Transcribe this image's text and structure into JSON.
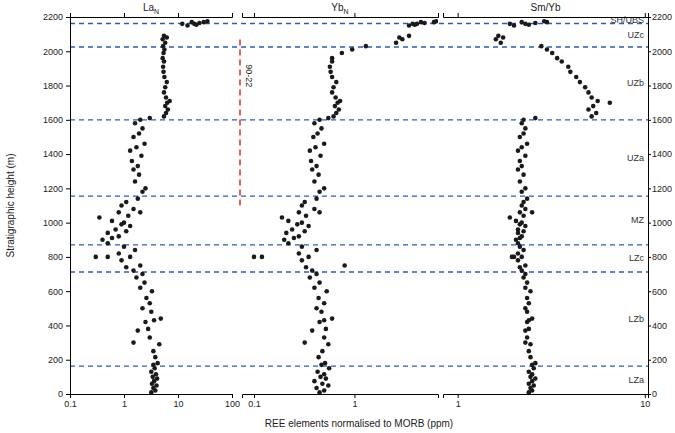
{
  "chart_data": {
    "type": "scatter",
    "log": "x",
    "grid": false,
    "color": "#1a1a1a",
    "xlabel": "REE elements normalised to MORB (ppm)",
    "ylabel": "Stratigraphic height (m)",
    "ylim": [
      0,
      2200
    ],
    "yticks": [
      0,
      200,
      400,
      600,
      800,
      1000,
      1200,
      1400,
      1600,
      1800,
      2000,
      2200
    ],
    "zones": [
      {
        "name": "LZa",
        "from": 0,
        "to": 163
      },
      {
        "name": "LZb",
        "from": 163,
        "to": 712
      },
      {
        "name": "LZc",
        "from": 712,
        "to": 870
      },
      {
        "name": "MZ",
        "from": 870,
        "to": 1155
      },
      {
        "name": "UZa",
        "from": 1155,
        "to": 1600
      },
      {
        "name": "UZb",
        "from": 1600,
        "to": 2025
      },
      {
        "name": "UZc",
        "from": 2025,
        "to": 2162
      },
      {
        "name": "SH/UBS",
        "from": 2162,
        "to": 2200
      }
    ],
    "zone_color": "#2e5cb8",
    "annotation": {
      "text": "90-22",
      "y_range": [
        1100,
        2070
      ],
      "color": "#e03a2f"
    },
    "panels": [
      {
        "title": {
          "text": "La",
          "sub": "N"
        },
        "xlim": [
          0.1,
          100
        ],
        "xticks": [
          0.1,
          1,
          10,
          100
        ],
        "x": [
          3.2,
          3.8,
          3.5,
          4.0,
          3.3,
          3.6,
          4.1,
          3.4,
          3.9,
          3.2,
          3.7,
          3.5,
          4.2,
          3.8,
          3.5,
          4.5,
          3.0,
          1.5,
          2.8,
          1.8,
          2.5,
          4.8,
          3.6,
          3.2,
          2.2,
          3.0,
          2.6,
          3.3,
          2.0,
          2.4,
          1.7,
          2.2,
          1.5,
          1.1,
          2.0,
          0.9,
          1.3,
          0.5,
          0.3,
          0.8,
          1.6,
          1.0,
          0.5,
          0.4,
          0.6,
          0.8,
          0.5,
          1.1,
          0.7,
          1.3,
          0.9,
          1.0,
          0.6,
          0.35,
          1.2,
          0.8,
          2.0,
          1.5,
          0.9,
          1.1,
          1.8,
          2.2,
          2.5,
          1.6,
          1.9,
          1.5,
          1.8,
          1.4,
          2.1,
          1.3,
          1.7,
          2.4,
          1.5,
          1.9,
          2.2,
          1.6,
          2.0,
          3.0,
          5.5,
          6.0,
          6.5,
          5.8,
          6.3,
          7.0,
          6.0,
          5.5,
          5.8,
          6.2,
          5.6,
          5.4,
          5.3,
          5.5,
          5.2,
          5.4,
          5.6,
          5.3,
          5.8,
          5.2,
          6.2,
          5.5,
          15,
          20,
          25,
          30,
          18,
          12,
          35,
          22
        ],
        "y": [
          10,
          20,
          35,
          50,
          60,
          75,
          90,
          100,
          115,
          130,
          150,
          170,
          180,
          215,
          250,
          290,
          330,
          300,
          380,
          370,
          420,
          440,
          430,
          480,
          500,
          530,
          560,
          600,
          620,
          650,
          680,
          700,
          720,
          740,
          750,
          780,
          800,
          800,
          800,
          820,
          840,
          860,
          880,
          900,
          910,
          920,
          940,
          950,
          960,
          980,
          990,
          1000,
          1010,
          1030,
          1040,
          1060,
          1060,
          1080,
          1100,
          1120,
          1140,
          1180,
          1200,
          1240,
          1280,
          1310,
          1330,
          1360,
          1390,
          1420,
          1440,
          1460,
          1500,
          1520,
          1550,
          1580,
          1600,
          1610,
          1620,
          1640,
          1660,
          1680,
          1700,
          1710,
          1730,
          1760,
          1790,
          1820,
          1850,
          1880,
          1910,
          1940,
          1960,
          1990,
          2010,
          2030,
          2050,
          2070,
          2080,
          2090,
          2150,
          2160,
          2165,
          2170,
          2170,
          2160,
          2175,
          2155
        ]
      },
      {
        "title": {
          "text": "Yb",
          "sub": "N"
        },
        "xlim": [
          0.076,
          6.8
        ],
        "xticks": [
          0.1,
          1
        ],
        "x": [
          0.45,
          0.5,
          0.42,
          0.55,
          0.48,
          0.4,
          0.52,
          0.46,
          0.5,
          0.43,
          0.56,
          0.47,
          0.51,
          0.44,
          0.48,
          0.55,
          0.5,
          0.32,
          0.52,
          0.38,
          0.45,
          0.6,
          0.5,
          0.47,
          0.42,
          0.5,
          0.44,
          0.53,
          0.4,
          0.45,
          0.36,
          0.42,
          0.38,
          0.33,
          0.8,
          0.3,
          0.35,
          0.12,
          0.1,
          0.28,
          0.42,
          0.3,
          0.22,
          0.2,
          0.25,
          0.28,
          0.21,
          0.32,
          0.24,
          0.35,
          0.27,
          0.3,
          0.22,
          0.19,
          0.33,
          0.28,
          0.45,
          0.4,
          0.3,
          0.32,
          0.42,
          0.45,
          0.5,
          0.4,
          0.44,
          0.38,
          0.42,
          0.37,
          0.46,
          0.36,
          0.41,
          0.5,
          0.39,
          0.43,
          0.47,
          0.4,
          0.45,
          0.55,
          0.62,
          0.66,
          0.7,
          0.64,
          0.68,
          0.72,
          0.65,
          0.6,
          0.62,
          0.66,
          0.6,
          0.58,
          0.57,
          0.6,
          0.6,
          0.75,
          0.95,
          1.3,
          2.6,
          3.0,
          2.8,
          3.5,
          3.5,
          4.2,
          5.0,
          6.2,
          4.6,
          3.8,
          6.5,
          4.0
        ],
        "y": [
          10,
          20,
          35,
          50,
          60,
          75,
          90,
          100,
          115,
          130,
          150,
          170,
          180,
          215,
          250,
          290,
          330,
          300,
          380,
          370,
          420,
          440,
          430,
          480,
          500,
          530,
          560,
          600,
          620,
          650,
          680,
          700,
          720,
          740,
          750,
          780,
          800,
          800,
          800,
          820,
          840,
          860,
          880,
          900,
          910,
          920,
          940,
          950,
          960,
          980,
          990,
          1000,
          1010,
          1030,
          1040,
          1060,
          1060,
          1080,
          1100,
          1120,
          1140,
          1180,
          1200,
          1240,
          1280,
          1310,
          1330,
          1360,
          1390,
          1420,
          1440,
          1460,
          1500,
          1520,
          1550,
          1580,
          1600,
          1610,
          1620,
          1640,
          1660,
          1680,
          1700,
          1710,
          1730,
          1760,
          1790,
          1820,
          1850,
          1880,
          1910,
          1940,
          1960,
          1990,
          2010,
          2030,
          2050,
          2070,
          2080,
          2090,
          2150,
          2160,
          2165,
          2170,
          2170,
          2160,
          2175,
          2155
        ]
      },
      {
        "title": {
          "text": "Sm/Yb",
          "sub": null
        },
        "xlim": [
          0.835,
          10.4
        ],
        "xticks": [
          1,
          10
        ],
        "x": [
          2.4,
          2.5,
          2.45,
          2.55,
          2.4,
          2.5,
          2.6,
          2.45,
          2.5,
          2.4,
          2.55,
          2.5,
          2.6,
          2.45,
          2.4,
          2.45,
          2.35,
          2.3,
          2.4,
          2.3,
          2.35,
          2.5,
          2.4,
          2.35,
          2.3,
          2.4,
          2.35,
          2.45,
          2.3,
          2.35,
          2.25,
          2.3,
          2.2,
          2.15,
          2.3,
          2.1,
          2.2,
          2.0,
          1.95,
          2.1,
          2.25,
          2.15,
          2.1,
          2.05,
          2.15,
          2.2,
          2.1,
          2.25,
          2.1,
          2.3,
          2.15,
          2.2,
          2.05,
          1.9,
          2.25,
          2.15,
          2.5,
          2.3,
          2.2,
          2.25,
          2.35,
          2.2,
          2.3,
          2.15,
          2.25,
          2.1,
          2.2,
          2.15,
          2.3,
          2.1,
          2.2,
          2.35,
          2.15,
          2.25,
          2.3,
          2.2,
          2.25,
          2.6,
          5.2,
          5.5,
          5.0,
          5.3,
          6.5,
          5.6,
          5.2,
          5.0,
          4.8,
          4.5,
          4.3,
          4.0,
          3.9,
          3.6,
          3.4,
          3.2,
          3.0,
          2.8,
          1.7,
          1.6,
          1.75,
          1.65,
          2.0,
          2.3,
          2.6,
          3.0,
          2.2,
          1.9,
          2.9,
          2.4
        ],
        "y": [
          10,
          20,
          35,
          50,
          60,
          75,
          90,
          100,
          115,
          130,
          150,
          170,
          180,
          215,
          250,
          290,
          330,
          300,
          380,
          370,
          420,
          440,
          430,
          480,
          500,
          530,
          560,
          600,
          620,
          650,
          680,
          700,
          720,
          740,
          750,
          780,
          800,
          800,
          800,
          820,
          840,
          860,
          880,
          900,
          910,
          920,
          940,
          950,
          960,
          980,
          990,
          1000,
          1010,
          1030,
          1040,
          1060,
          1060,
          1080,
          1100,
          1120,
          1140,
          1180,
          1200,
          1240,
          1280,
          1310,
          1330,
          1360,
          1390,
          1420,
          1440,
          1460,
          1500,
          1520,
          1550,
          1580,
          1600,
          1610,
          1620,
          1640,
          1660,
          1680,
          1700,
          1710,
          1730,
          1760,
          1790,
          1820,
          1850,
          1880,
          1910,
          1940,
          1960,
          1990,
          2010,
          2030,
          2050,
          2070,
          2080,
          2090,
          2150,
          2160,
          2165,
          2170,
          2170,
          2160,
          2175,
          2155
        ]
      }
    ]
  }
}
